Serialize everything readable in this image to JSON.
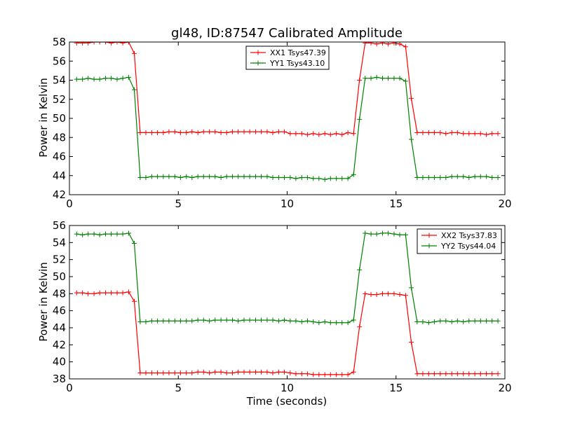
{
  "chart_data": [
    {
      "type": "line",
      "title": "gl48, ID:87547 Calibrated Amplitude",
      "xlabel": "",
      "ylabel": "Power in Kelvin",
      "xlim": [
        0,
        20
      ],
      "ylim": [
        42,
        58
      ],
      "xticks": [
        "0",
        "5",
        "10",
        "15",
        "20"
      ],
      "yticks": [
        "42",
        "44",
        "46",
        "48",
        "50",
        "52",
        "54",
        "56",
        "58"
      ],
      "legend_position": "top-center",
      "series": [
        {
          "name": "XX1 Tsys47.39",
          "color": "#ff0000",
          "x": [
            0.33,
            0.6,
            0.86,
            1.13,
            1.39,
            1.66,
            1.92,
            2.19,
            2.45,
            2.72,
            2.98,
            3.25,
            3.51,
            3.78,
            4.04,
            4.31,
            4.57,
            4.84,
            5.1,
            5.37,
            5.63,
            5.9,
            6.16,
            6.43,
            6.69,
            6.96,
            7.22,
            7.49,
            7.75,
            8.02,
            8.28,
            8.55,
            8.81,
            9.08,
            9.34,
            9.61,
            9.87,
            10.14,
            10.4,
            10.67,
            10.93,
            11.2,
            11.46,
            11.73,
            11.99,
            12.26,
            12.52,
            12.79,
            13.05,
            13.32,
            13.58,
            13.85,
            14.11,
            14.38,
            14.64,
            14.91,
            15.17,
            15.44,
            15.7,
            15.97,
            16.23,
            16.5,
            16.76,
            17.03,
            17.29,
            17.56,
            17.82,
            18.09,
            18.35,
            18.62,
            18.88,
            19.15,
            19.41,
            19.68
          ],
          "y": [
            57.9,
            57.9,
            57.9,
            58.0,
            58.0,
            58.0,
            57.9,
            58.0,
            57.9,
            58.0,
            56.8,
            48.5,
            48.5,
            48.5,
            48.5,
            48.5,
            48.6,
            48.6,
            48.5,
            48.5,
            48.6,
            48.5,
            48.6,
            48.6,
            48.6,
            48.5,
            48.5,
            48.6,
            48.6,
            48.6,
            48.6,
            48.6,
            48.6,
            48.6,
            48.5,
            48.6,
            48.6,
            48.4,
            48.4,
            48.4,
            48.3,
            48.4,
            48.3,
            48.4,
            48.3,
            48.4,
            48.3,
            48.5,
            48.4,
            54.0,
            57.9,
            57.9,
            57.8,
            57.9,
            57.8,
            57.9,
            57.8,
            57.5,
            52.1,
            48.5,
            48.5,
            48.5,
            48.5,
            48.5,
            48.4,
            48.5,
            48.5,
            48.4,
            48.4,
            48.4,
            48.4,
            48.3,
            48.4,
            48.4
          ]
        },
        {
          "name": "YY1 Tsys43.10",
          "color": "#008000",
          "x": [
            0.33,
            0.6,
            0.86,
            1.13,
            1.39,
            1.66,
            1.92,
            2.19,
            2.45,
            2.72,
            2.98,
            3.25,
            3.51,
            3.78,
            4.04,
            4.31,
            4.57,
            4.84,
            5.1,
            5.37,
            5.63,
            5.9,
            6.16,
            6.43,
            6.69,
            6.96,
            7.22,
            7.49,
            7.75,
            8.02,
            8.28,
            8.55,
            8.81,
            9.08,
            9.34,
            9.61,
            9.87,
            10.14,
            10.4,
            10.67,
            10.93,
            11.2,
            11.46,
            11.73,
            11.99,
            12.26,
            12.52,
            12.79,
            13.05,
            13.32,
            13.58,
            13.85,
            14.11,
            14.38,
            14.64,
            14.91,
            15.17,
            15.44,
            15.7,
            15.97,
            16.23,
            16.5,
            16.76,
            17.03,
            17.29,
            17.56,
            17.82,
            18.09,
            18.35,
            18.62,
            18.88,
            19.15,
            19.41,
            19.68
          ],
          "y": [
            54.1,
            54.1,
            54.2,
            54.1,
            54.1,
            54.2,
            54.2,
            54.1,
            54.2,
            54.3,
            53.0,
            43.8,
            43.8,
            43.9,
            43.9,
            43.9,
            43.9,
            43.9,
            43.8,
            43.9,
            43.8,
            43.9,
            43.9,
            43.9,
            43.9,
            43.8,
            43.9,
            43.9,
            43.9,
            43.9,
            43.9,
            43.9,
            43.9,
            43.9,
            43.8,
            43.8,
            43.8,
            43.8,
            43.7,
            43.8,
            43.8,
            43.7,
            43.7,
            43.6,
            43.7,
            43.7,
            43.7,
            43.7,
            44.1,
            49.9,
            54.2,
            54.2,
            54.3,
            54.2,
            54.2,
            54.2,
            54.2,
            53.9,
            47.8,
            43.8,
            43.8,
            43.8,
            43.8,
            43.8,
            43.8,
            43.9,
            43.9,
            43.9,
            43.8,
            43.9,
            43.9,
            43.9,
            43.8,
            43.8
          ]
        }
      ]
    },
    {
      "type": "line",
      "title": "",
      "xlabel": "Time (seconds)",
      "ylabel": "Power in Kelvin",
      "xlim": [
        0,
        20
      ],
      "ylim": [
        38,
        56
      ],
      "xticks": [
        "0",
        "5",
        "10",
        "15",
        "20"
      ],
      "yticks": [
        "38",
        "40",
        "42",
        "44",
        "46",
        "48",
        "50",
        "52",
        "54",
        "56"
      ],
      "legend_position": "top-right",
      "series": [
        {
          "name": "XX2 Tsys37.83",
          "color": "#ff0000",
          "x": [
            0.33,
            0.6,
            0.86,
            1.13,
            1.39,
            1.66,
            1.92,
            2.19,
            2.45,
            2.72,
            2.98,
            3.25,
            3.51,
            3.78,
            4.04,
            4.31,
            4.57,
            4.84,
            5.1,
            5.37,
            5.63,
            5.9,
            6.16,
            6.43,
            6.69,
            6.96,
            7.22,
            7.49,
            7.75,
            8.02,
            8.28,
            8.55,
            8.81,
            9.08,
            9.34,
            9.61,
            9.87,
            10.14,
            10.4,
            10.67,
            10.93,
            11.2,
            11.46,
            11.73,
            11.99,
            12.26,
            12.52,
            12.79,
            13.05,
            13.32,
            13.58,
            13.85,
            14.11,
            14.38,
            14.64,
            14.91,
            15.17,
            15.44,
            15.7,
            15.97,
            16.23,
            16.5,
            16.76,
            17.03,
            17.29,
            17.56,
            17.82,
            18.09,
            18.35,
            18.62,
            18.88,
            19.15,
            19.41,
            19.68
          ],
          "y": [
            48.1,
            48.1,
            48.0,
            48.0,
            48.1,
            48.1,
            48.1,
            48.1,
            48.1,
            48.2,
            47.1,
            38.7,
            38.7,
            38.7,
            38.7,
            38.7,
            38.7,
            38.7,
            38.7,
            38.7,
            38.7,
            38.8,
            38.8,
            38.7,
            38.8,
            38.8,
            38.7,
            38.7,
            38.8,
            38.8,
            38.8,
            38.8,
            38.8,
            38.8,
            38.7,
            38.8,
            38.8,
            38.7,
            38.6,
            38.6,
            38.6,
            38.5,
            38.5,
            38.5,
            38.5,
            38.5,
            38.5,
            38.5,
            38.8,
            44.1,
            48.0,
            47.9,
            47.9,
            48.0,
            48.0,
            48.0,
            47.9,
            47.8,
            42.3,
            38.6,
            38.6,
            38.6,
            38.6,
            38.6,
            38.6,
            38.6,
            38.6,
            38.6,
            38.6,
            38.6,
            38.6,
            38.6,
            38.6,
            38.6
          ]
        },
        {
          "name": "YY2 Tsys44.04",
          "color": "#008000",
          "x": [
            0.33,
            0.6,
            0.86,
            1.13,
            1.39,
            1.66,
            1.92,
            2.19,
            2.45,
            2.72,
            2.98,
            3.25,
            3.51,
            3.78,
            4.04,
            4.31,
            4.57,
            4.84,
            5.1,
            5.37,
            5.63,
            5.9,
            6.16,
            6.43,
            6.69,
            6.96,
            7.22,
            7.49,
            7.75,
            8.02,
            8.28,
            8.55,
            8.81,
            9.08,
            9.34,
            9.61,
            9.87,
            10.14,
            10.4,
            10.67,
            10.93,
            11.2,
            11.46,
            11.73,
            11.99,
            12.26,
            12.52,
            12.79,
            13.05,
            13.32,
            13.58,
            13.85,
            14.11,
            14.38,
            14.64,
            14.91,
            15.17,
            15.44,
            15.7,
            15.97,
            16.23,
            16.5,
            16.76,
            17.03,
            17.29,
            17.56,
            17.82,
            18.09,
            18.35,
            18.62,
            18.88,
            19.15,
            19.41,
            19.68
          ],
          "y": [
            55.0,
            54.9,
            55.0,
            55.0,
            54.9,
            55.0,
            55.0,
            55.0,
            55.0,
            55.1,
            53.9,
            44.7,
            44.7,
            44.8,
            44.8,
            44.8,
            44.8,
            44.8,
            44.8,
            44.8,
            44.8,
            44.9,
            44.9,
            44.8,
            44.9,
            44.9,
            44.9,
            44.9,
            44.8,
            44.9,
            44.9,
            44.9,
            44.9,
            44.9,
            44.9,
            44.8,
            44.9,
            44.8,
            44.8,
            44.7,
            44.8,
            44.7,
            44.6,
            44.7,
            44.6,
            44.6,
            44.6,
            44.6,
            44.9,
            50.8,
            55.1,
            55.0,
            55.0,
            55.1,
            55.1,
            55.0,
            54.9,
            54.9,
            48.7,
            44.7,
            44.7,
            44.6,
            44.7,
            44.8,
            44.8,
            44.7,
            44.8,
            44.7,
            44.8,
            44.8,
            44.8,
            44.8,
            44.8,
            44.8
          ]
        }
      ]
    }
  ]
}
